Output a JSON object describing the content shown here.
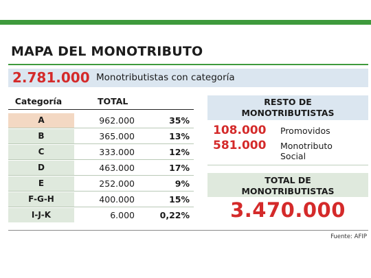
{
  "title": "MAPA DEL MONOTRIBUTO",
  "summary": {
    "number": "2.781.000",
    "label": "Monotributistas con categoría"
  },
  "table": {
    "header_category": "Categoría",
    "header_total": "TOTAL",
    "rows": [
      {
        "cat": "A",
        "value": "962.000",
        "pct": "35%"
      },
      {
        "cat": "B",
        "value": "365.000",
        "pct": "13%"
      },
      {
        "cat": "C",
        "value": "333.000",
        "pct": "12%"
      },
      {
        "cat": "D",
        "value": "463.000",
        "pct": "17%"
      },
      {
        "cat": "E",
        "value": "252.000",
        "pct": "9%"
      },
      {
        "cat": "F-G-H",
        "value": "400.000",
        "pct": "15%"
      },
      {
        "cat": "I-J-K",
        "value": "6.000",
        "pct": "0,22%"
      }
    ]
  },
  "rest": {
    "heading_line1": "RESTO DE",
    "heading_line2": "MONOTRIBUTISTAS",
    "items": [
      {
        "number": "108.000",
        "label": "Promovidos",
        "label2": ""
      },
      {
        "number": "581.000",
        "label": "Monotributo",
        "label2": "Social"
      }
    ]
  },
  "total": {
    "heading_line1": "TOTAL DE",
    "heading_line2": "MONOTRIBUTISTAS",
    "value": "3.470.000"
  },
  "source": "Fuente: AFIP",
  "colors": {
    "accent_green": "#3e9a3c",
    "highlight_red": "#d42a2a",
    "header_blue": "#dbe6f0",
    "row_green": "#dfe9dd",
    "row_highlight": "#f3d8c3"
  }
}
